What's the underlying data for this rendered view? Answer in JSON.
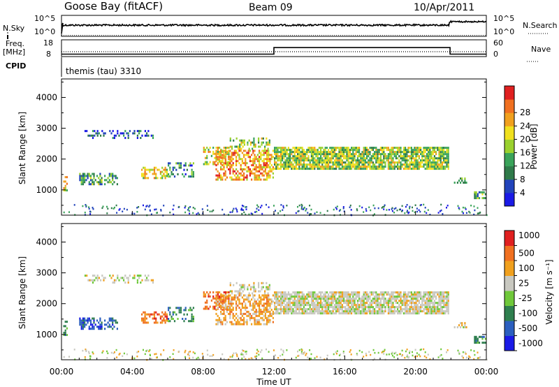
{
  "header": {
    "station": "Goose Bay (fitACF)",
    "beam": "Beam 09",
    "date": "10/Apr/2011"
  },
  "nsky_panel": {
    "left_label": "N.Sky",
    "right_label": "N.Search",
    "left_ticks": [
      "10^5",
      "10^0"
    ],
    "right_ticks": [
      "10^5",
      "10^0"
    ]
  },
  "freq_panel": {
    "left_label_line1": "Freq.",
    "left_label_line2": "[MHz]",
    "right_label": "Nave",
    "left_ticks": [
      "18",
      "8"
    ],
    "right_ticks": [
      "60",
      "0"
    ],
    "freq_steps": [
      {
        "t": 0,
        "mhz": 10.3
      },
      {
        "t": 12,
        "mhz": 10.3
      },
      {
        "t": 12,
        "mhz": 14.2
      },
      {
        "t": 21.95,
        "mhz": 14.2
      },
      {
        "t": 21.95,
        "mhz": 10.3
      },
      {
        "t": 24,
        "mhz": 10.3
      }
    ]
  },
  "cpid_label": "CPID",
  "cpid_text": "themis (tau) 3310",
  "chart_data": [
    {
      "type": "heatmap",
      "quantity": "Power",
      "ylabel": "Slant Range [km]",
      "ylim": [
        180,
        4600
      ],
      "yticks": [
        "1000",
        "2000",
        "3000",
        "4000"
      ],
      "colorbar_label": "Power [dB]",
      "colorbar_ticks": [
        "4",
        "8",
        "12",
        "16",
        "20",
        "24",
        "28"
      ],
      "colorbar_colors": [
        "#1a1ae6",
        "#2244bb",
        "#2f7a4a",
        "#3aa35a",
        "#9ad12e",
        "#f0e01e",
        "#f0a01e",
        "#f07020",
        "#e02020"
      ]
    },
    {
      "type": "heatmap",
      "quantity": "Velocity",
      "ylabel": "Slant Range [km]",
      "ylim": [
        180,
        4600
      ],
      "yticks": [
        "1000",
        "2000",
        "3000",
        "4000"
      ],
      "xlabel": "Time UT",
      "xticks": [
        "00:00",
        "04:00",
        "08:00",
        "12:00",
        "16:00",
        "20:00",
        "00:00"
      ],
      "colorbar_label": "Velocity [m s⁻¹]",
      "colorbar_ticks": [
        "1000",
        "500",
        "100",
        "25",
        "-25",
        "-100",
        "-500",
        "-1000"
      ],
      "colorbar_colors": [
        "#1a1ae6",
        "#2b5fbf",
        "#2f7f4f",
        "#6fc83a",
        "#c8c8c0",
        "#f0a01e",
        "#f07020",
        "#e02020"
      ]
    }
  ]
}
